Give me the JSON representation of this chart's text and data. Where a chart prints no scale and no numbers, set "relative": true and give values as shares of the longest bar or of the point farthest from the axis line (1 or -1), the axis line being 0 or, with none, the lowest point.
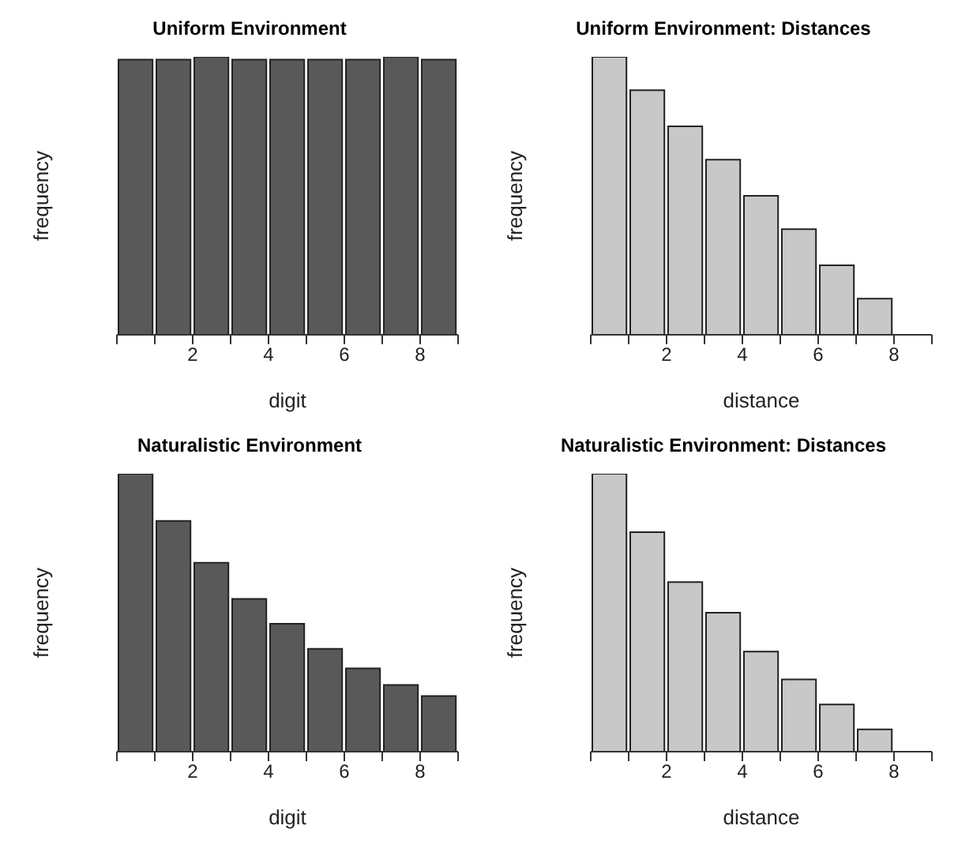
{
  "chart_data": [
    {
      "type": "bar",
      "title": "Uniform Environment",
      "xlabel": "digit",
      "ylabel": "frequency",
      "relative": true,
      "color": "#595959",
      "x": [
        0.5,
        1.5,
        2.5,
        3.5,
        4.5,
        5.5,
        6.5,
        7.5,
        8.5
      ],
      "values": [
        0.99,
        0.99,
        1,
        0.99,
        0.99,
        0.99,
        0.99,
        1,
        0.99
      ],
      "xlim": [
        0,
        9
      ],
      "xticks": [
        {
          "value": 0,
          "label": null
        },
        {
          "value": 1,
          "label": null
        },
        2,
        {
          "value": 3,
          "label": null
        },
        4,
        {
          "value": 5,
          "label": null
        },
        6,
        {
          "value": 7,
          "label": null
        },
        8,
        {
          "value": 9,
          "label": null
        }
      ],
      "grid": false,
      "legend": false
    },
    {
      "type": "bar",
      "title": "Uniform Environment: Distances",
      "xlabel": "distance",
      "ylabel": "frequency",
      "relative": true,
      "color": "#c8c8c8",
      "x": [
        0.5,
        1.5,
        2.5,
        3.5,
        4.5,
        5.5,
        6.5,
        7.5,
        8.5
      ],
      "values": [
        1,
        0.88,
        0.75,
        0.63,
        0.5,
        0.38,
        0.25,
        0.13,
        0
      ],
      "xlim": [
        0,
        9
      ],
      "xticks": [
        {
          "value": 0,
          "label": null
        },
        {
          "value": 1,
          "label": null
        },
        2,
        {
          "value": 3,
          "label": null
        },
        4,
        {
          "value": 5,
          "label": null
        },
        6,
        {
          "value": 7,
          "label": null
        },
        8,
        {
          "value": 9,
          "label": null
        }
      ],
      "grid": false,
      "legend": false
    },
    {
      "type": "bar",
      "title": "Naturalistic Environment",
      "xlabel": "digit",
      "ylabel": "frequency",
      "relative": true,
      "color": "#595959",
      "x": [
        0.5,
        1.5,
        2.5,
        3.5,
        4.5,
        5.5,
        6.5,
        7.5,
        8.5
      ],
      "values": [
        1,
        0.83,
        0.68,
        0.55,
        0.46,
        0.37,
        0.3,
        0.24,
        0.2
      ],
      "xlim": [
        0,
        9
      ],
      "xticks": [
        {
          "value": 0,
          "label": null
        },
        {
          "value": 1,
          "label": null
        },
        2,
        {
          "value": 3,
          "label": null
        },
        4,
        {
          "value": 5,
          "label": null
        },
        6,
        {
          "value": 7,
          "label": null
        },
        8,
        {
          "value": 9,
          "label": null
        }
      ],
      "grid": false,
      "legend": false
    },
    {
      "type": "bar",
      "title": "Naturalistic Environment: Distances",
      "xlabel": "distance",
      "ylabel": "frequency",
      "relative": true,
      "color": "#c8c8c8",
      "x": [
        0.5,
        1.5,
        2.5,
        3.5,
        4.5,
        5.5,
        6.5,
        7.5,
        8.5
      ],
      "values": [
        1,
        0.79,
        0.61,
        0.5,
        0.36,
        0.26,
        0.17,
        0.08,
        0
      ],
      "xlim": [
        0,
        9
      ],
      "xticks": [
        {
          "value": 0,
          "label": null
        },
        {
          "value": 1,
          "label": null
        },
        2,
        {
          "value": 3,
          "label": null
        },
        4,
        {
          "value": 5,
          "label": null
        },
        6,
        {
          "value": 7,
          "label": null
        },
        8,
        {
          "value": 9,
          "label": null
        }
      ],
      "grid": false,
      "legend": false
    }
  ]
}
